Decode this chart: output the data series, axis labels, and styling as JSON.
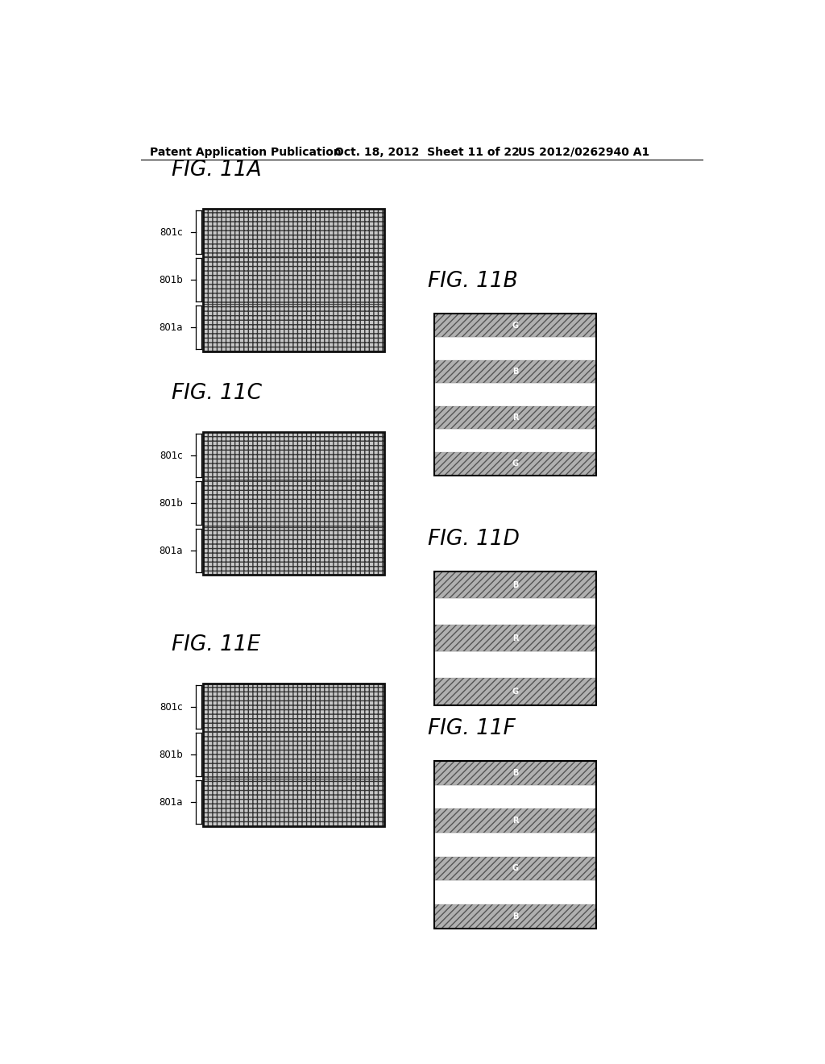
{
  "header_left": "Patent Application Publication",
  "header_mid": "Oct. 18, 2012  Sheet 11 of 22",
  "header_right": "US 2012/0262940 A1",
  "fig_titles": [
    "FIG. 11A",
    "FIG. 11B",
    "FIG. 11C",
    "FIG. 11D",
    "FIG. 11E",
    "FIG. 11F"
  ],
  "left_labels": [
    [
      "801a",
      "801b",
      "801c"
    ],
    [
      "801a",
      "801b",
      "801c"
    ],
    [
      "801a",
      "801b",
      "801c"
    ]
  ],
  "right_11b_bands": [
    "G",
    "white",
    "R",
    "white",
    "B",
    "white",
    "G"
  ],
  "right_11d_bands": [
    "G",
    "white",
    "R",
    "white",
    "B"
  ],
  "right_11f_bands": [
    "B",
    "white",
    "G",
    "white",
    "R",
    "white",
    "B"
  ],
  "bg_color": "#ffffff",
  "grid_face": "#c8c8c8",
  "hatch_face": "#b0b0b0",
  "border_color": "#000000"
}
